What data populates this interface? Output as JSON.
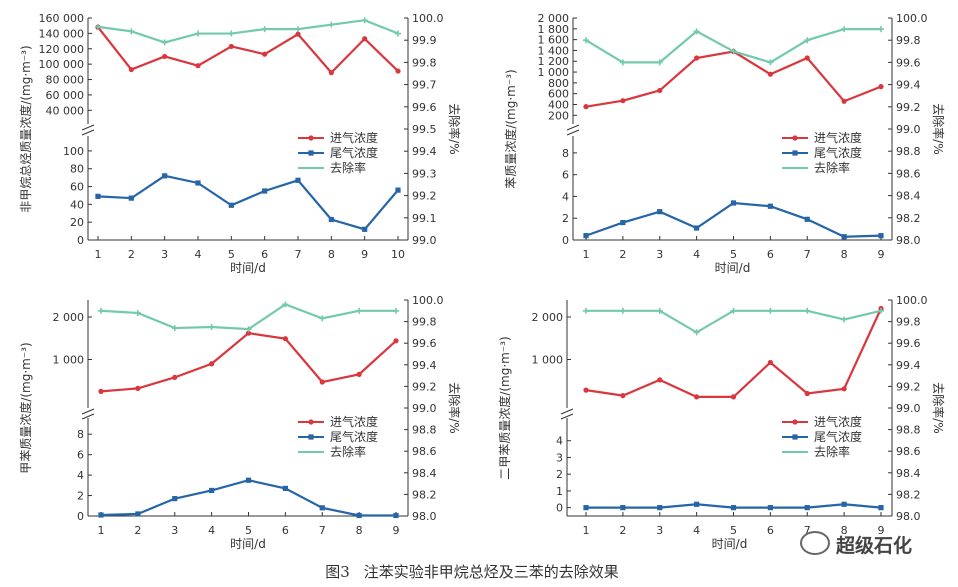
{
  "caption": {
    "fig_no": "图3",
    "title": "注苯实验非甲烷总烃及三苯的去除效果"
  },
  "watermark": "超级石化",
  "colors": {
    "inlet": "#d9363e",
    "outlet": "#2565a8",
    "removal": "#72c9ad",
    "axis": "#333333"
  },
  "chart_data": [
    {
      "type": "line",
      "xlabel": "时间/d",
      "ylabel": "非甲烷总烃质量浓度/(mg·m⁻³)",
      "y2label": "去除率/%",
      "x": [
        1,
        2,
        3,
        4,
        5,
        6,
        7,
        8,
        9,
        10
      ],
      "upper_ylim": [
        30000,
        160000
      ],
      "upper_yticks": [
        "40 000",
        "60 000",
        "80 000",
        "100 000",
        "120 000",
        "140 000",
        "160 000"
      ],
      "upper_ytick_values": [
        40000,
        60000,
        80000,
        100000,
        120000,
        140000,
        160000
      ],
      "lower_ylim": [
        0,
        110
      ],
      "lower_yticks": [
        "0",
        "20",
        "40",
        "60",
        "80",
        "100"
      ],
      "lower_ytick_values": [
        0,
        20,
        40,
        60,
        80,
        100
      ],
      "y2lim": [
        99.0,
        100.0
      ],
      "y2ticks": [
        "99.0",
        "99.1",
        "99.2",
        "99.3",
        "99.4",
        "99.5",
        "99.6",
        "99.7",
        "99.8",
        "99.9",
        "100.0"
      ],
      "y2tick_values": [
        99.0,
        99.1,
        99.2,
        99.3,
        99.4,
        99.5,
        99.6,
        99.7,
        99.8,
        99.9,
        100.0
      ],
      "legend": [
        "进气浓度",
        "尾气浓度",
        "去除率"
      ],
      "series": [
        {
          "name": "进气浓度",
          "values": [
            148000,
            93000,
            110000,
            98000,
            123000,
            113000,
            139000,
            89000,
            133000,
            91000
          ]
        },
        {
          "name": "尾气浓度",
          "values": [
            49,
            47,
            72,
            64,
            39,
            55,
            67,
            23,
            12,
            56
          ]
        },
        {
          "name": "去除率",
          "values": [
            99.96,
            99.94,
            99.89,
            99.93,
            99.93,
            99.95,
            99.95,
            99.97,
            99.99,
            99.93
          ]
        }
      ]
    },
    {
      "type": "line",
      "xlabel": "时间/d",
      "ylabel": "苯质量浓度/(mg·m⁻³)",
      "y2label": "去除率/%",
      "x": [
        1,
        2,
        3,
        4,
        5,
        6,
        7,
        8,
        9
      ],
      "upper_ylim": [
        150,
        2000
      ],
      "upper_yticks": [
        "200",
        "400",
        "600",
        "800",
        "1 000",
        "1 200",
        "1 400",
        "1 600",
        "1 800",
        "2 000"
      ],
      "upper_ytick_values": [
        200,
        400,
        600,
        800,
        1000,
        1200,
        1400,
        1600,
        1800,
        2000
      ],
      "lower_ylim": [
        0,
        9
      ],
      "lower_yticks": [
        "0",
        "2",
        "4",
        "6",
        "8"
      ],
      "lower_ytick_values": [
        0,
        2,
        4,
        6,
        8
      ],
      "y2lim": [
        98.0,
        100.0
      ],
      "y2ticks": [
        "98.0",
        "98.2",
        "98.4",
        "98.6",
        "98.8",
        "99.0",
        "99.2",
        "99.4",
        "99.6",
        "99.8",
        "100.0"
      ],
      "y2tick_values": [
        98.0,
        98.2,
        98.4,
        98.6,
        98.8,
        99.0,
        99.2,
        99.4,
        99.6,
        99.8,
        100.0
      ],
      "legend": [
        "进气浓度",
        "尾气浓度",
        "去除率"
      ],
      "series": [
        {
          "name": "进气浓度",
          "values": [
            360,
            470,
            660,
            1260,
            1380,
            960,
            1260,
            460,
            730
          ]
        },
        {
          "name": "尾气浓度",
          "values": [
            0.4,
            1.6,
            2.6,
            1.1,
            3.4,
            3.1,
            1.9,
            0.3,
            0.4
          ]
        },
        {
          "name": "去除率",
          "values": [
            99.8,
            99.6,
            99.6,
            99.88,
            99.7,
            99.6,
            99.8,
            99.9,
            99.9
          ]
        }
      ]
    },
    {
      "type": "line",
      "xlabel": "时间/d",
      "ylabel": "甲苯质量浓度/(mg·m⁻³)",
      "y2label": "去除率/%",
      "x": [
        1,
        2,
        3,
        4,
        5,
        6,
        7,
        8,
        9
      ],
      "upper_ylim": [
        0,
        2400
      ],
      "upper_yticks": [
        "1 000",
        "2 000"
      ],
      "upper_ytick_values": [
        1000,
        2000
      ],
      "lower_ylim": [
        0,
        9
      ],
      "lower_yticks": [
        "0",
        "2",
        "4",
        "6",
        "8"
      ],
      "lower_ytick_values": [
        0,
        2,
        4,
        6,
        8
      ],
      "y2lim": [
        98.0,
        100.0
      ],
      "y2ticks": [
        "98.0",
        "98.2",
        "98.4",
        "98.6",
        "98.8",
        "99.0",
        "99.2",
        "99.4",
        "99.6",
        "99.8",
        "100.0"
      ],
      "y2tick_values": [
        98.0,
        98.2,
        98.4,
        98.6,
        98.8,
        99.0,
        99.2,
        99.4,
        99.6,
        99.8,
        100.0
      ],
      "legend": [
        "进气浓度",
        "尾气浓度",
        "去除率"
      ],
      "series": [
        {
          "name": "进气浓度",
          "values": [
            250,
            320,
            580,
            900,
            1620,
            1490,
            470,
            650,
            1440
          ]
        },
        {
          "name": "尾气浓度",
          "values": [
            0.1,
            0.2,
            1.7,
            2.5,
            3.5,
            2.7,
            0.8,
            0.05,
            0.05
          ]
        },
        {
          "name": "去除率",
          "values": [
            99.9,
            99.88,
            99.74,
            99.75,
            99.73,
            99.96,
            99.83,
            99.9,
            99.9
          ]
        }
      ]
    },
    {
      "type": "line",
      "xlabel": "时间/d",
      "ylabel": "二甲苯质量浓度/(mg·m⁻³)",
      "y2label": "去除率/%",
      "x": [
        1,
        2,
        3,
        4,
        5,
        6,
        7,
        8,
        9
      ],
      "upper_ylim": [
        0,
        2400
      ],
      "upper_yticks": [
        "1 000",
        "2 000"
      ],
      "upper_ytick_values": [
        1000,
        2000
      ],
      "lower_ylim": [
        -0.5,
        5
      ],
      "lower_yticks": [
        "0",
        "1",
        "2",
        "3",
        "4"
      ],
      "lower_ytick_values": [
        0,
        1,
        2,
        3,
        4
      ],
      "y2lim": [
        98.0,
        100.0
      ],
      "y2ticks": [
        "98.0",
        "98.2",
        "98.4",
        "98.6",
        "98.8",
        "99.0",
        "99.2",
        "99.4",
        "99.6",
        "99.8",
        "100.0"
      ],
      "y2tick_values": [
        98.0,
        98.2,
        98.4,
        98.6,
        98.8,
        99.0,
        99.2,
        99.4,
        99.6,
        99.8,
        100.0
      ],
      "legend": [
        "进气浓度",
        "尾气浓度",
        "去除率"
      ],
      "series": [
        {
          "name": "进气浓度",
          "values": [
            280,
            150,
            520,
            120,
            120,
            930,
            200,
            310,
            2200
          ]
        },
        {
          "name": "尾气浓度",
          "values": [
            0,
            0,
            0,
            0.2,
            0,
            0,
            0,
            0.2,
            0
          ]
        },
        {
          "name": "去除率",
          "values": [
            99.9,
            99.9,
            99.9,
            99.7,
            99.9,
            99.9,
            99.9,
            99.82,
            99.9
          ]
        }
      ]
    }
  ]
}
